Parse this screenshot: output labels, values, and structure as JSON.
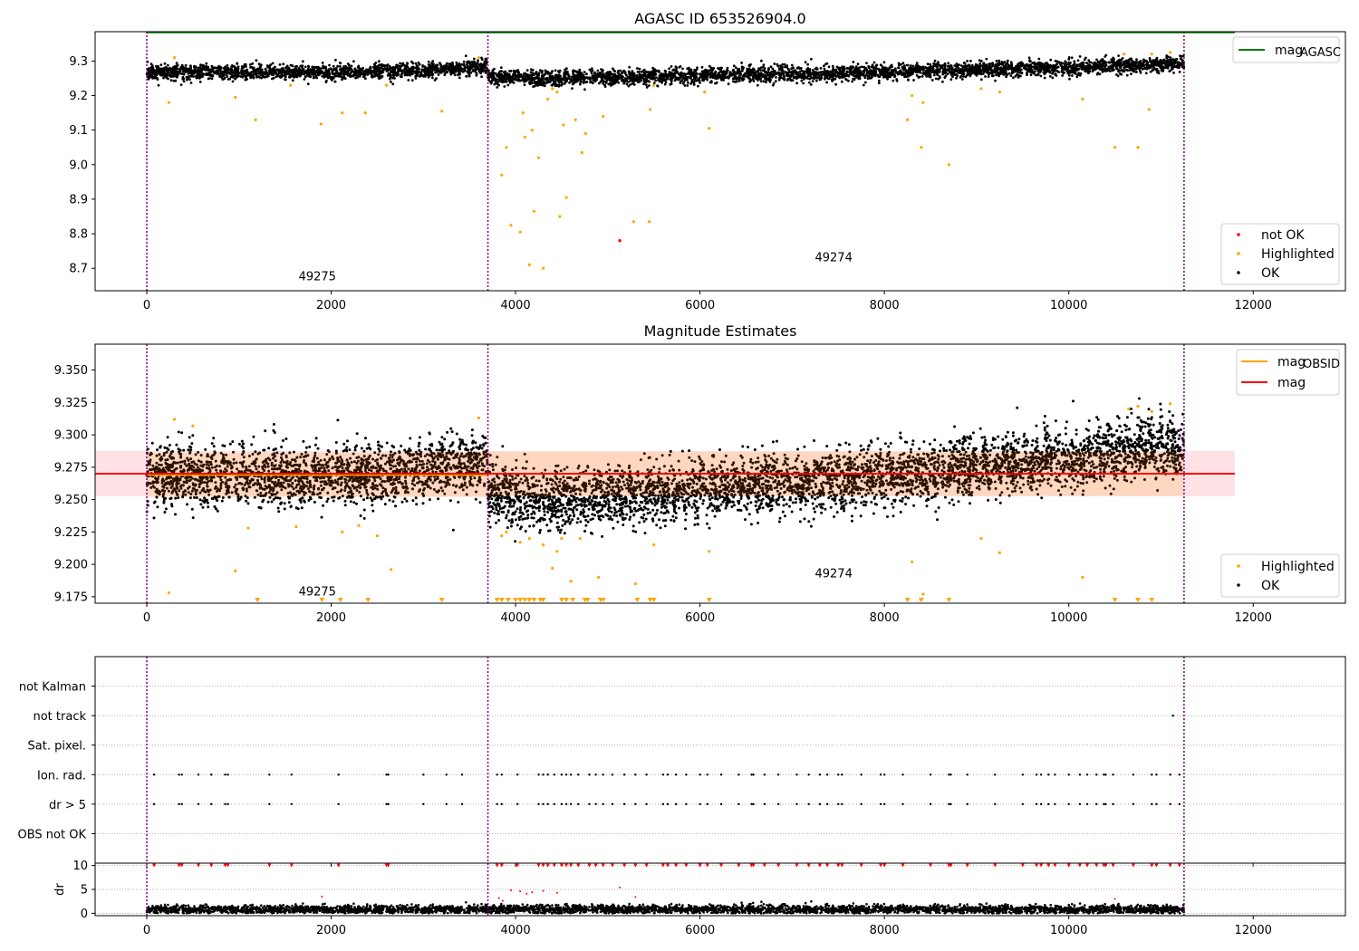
{
  "figure": {
    "title_top": "AGASC ID 653526904.0",
    "title_middle": "Magnitude Estimates"
  },
  "colors": {
    "ok": "#000000",
    "highlighted": "#ffa500",
    "not_ok": "#ff0000",
    "agasc": "#008000",
    "obsid": "#ffa500",
    "mag": "#ff0000",
    "obs_boundary": "#800080",
    "band_mag": "#ffb6c1",
    "band_obsid": "#ffcc99"
  },
  "legends": {
    "top_line": [
      {
        "key": "mag_agasc",
        "label": "mag",
        "sub": "AGASC",
        "color": "#008000"
      }
    ],
    "top_points": [
      {
        "label": "not OK",
        "color": "#ff0000"
      },
      {
        "label": "Highlighted",
        "color": "#ffa500"
      },
      {
        "label": "OK",
        "color": "#000000"
      }
    ],
    "middle_line": [
      {
        "key": "mag_obsid",
        "label": "mag",
        "sub": "OBSID",
        "color": "#ffa500"
      },
      {
        "key": "mag",
        "label": "mag",
        "sub": "",
        "color": "#ff0000"
      }
    ],
    "middle_points": [
      {
        "label": "Highlighted",
        "color": "#ffa500"
      },
      {
        "label": "OK",
        "color": "#000000"
      }
    ]
  },
  "chart_data": [
    {
      "type": "scatter",
      "title": "AGASC ID 653526904.0",
      "xlim": [
        -560,
        13000
      ],
      "ylim": [
        8.635,
        9.385
      ],
      "xticks": [
        0,
        2000,
        4000,
        6000,
        8000,
        10000,
        12000
      ],
      "yticks": [
        8.7,
        8.8,
        8.9,
        9.0,
        9.1,
        9.2,
        9.3
      ],
      "ytick_labels": [
        "8.7",
        "8.8",
        "8.9",
        "9.0",
        "9.1",
        "9.2",
        "9.3"
      ],
      "grid": false,
      "legend_line_position": "top-right",
      "legend_points_position": "bottom-right",
      "mag_agasc": 9.385,
      "obs_boundaries_x": [
        0,
        3700,
        11250
      ],
      "observations": [
        {
          "obsid": "49275",
          "x_range": [
            0,
            3700
          ],
          "label_x": 1850,
          "label_y": 8.665
        },
        {
          "obsid": "49274",
          "x_range": [
            3700,
            11250
          ],
          "label_x": 7450,
          "label_y": 8.72
        }
      ],
      "ok_trend": [
        {
          "x": 0,
          "y": 9.268
        },
        {
          "x": 2000,
          "y": 9.268
        },
        {
          "x": 3000,
          "y": 9.272
        },
        {
          "x": 3690,
          "y": 9.282
        },
        {
          "x": 3710,
          "y": 9.255
        },
        {
          "x": 4300,
          "y": 9.248
        },
        {
          "x": 6000,
          "y": 9.258
        },
        {
          "x": 8000,
          "y": 9.268
        },
        {
          "x": 10000,
          "y": 9.282
        },
        {
          "x": 11250,
          "y": 9.292
        }
      ],
      "highlighted_points": [
        [
          240,
          9.18
        ],
        [
          300,
          9.31
        ],
        [
          960,
          9.195
        ],
        [
          1180,
          9.13
        ],
        [
          1560,
          9.23
        ],
        [
          1890,
          9.118
        ],
        [
          2120,
          9.15
        ],
        [
          2370,
          9.15
        ],
        [
          2600,
          9.23
        ],
        [
          3200,
          9.155
        ],
        [
          3600,
          9.31
        ],
        [
          3850,
          8.97
        ],
        [
          3900,
          9.05
        ],
        [
          3950,
          8.825
        ],
        [
          4050,
          8.805
        ],
        [
          4080,
          9.15
        ],
        [
          4100,
          9.08
        ],
        [
          4150,
          8.71
        ],
        [
          4180,
          9.1
        ],
        [
          4200,
          8.865
        ],
        [
          4250,
          9.02
        ],
        [
          4300,
          8.7
        ],
        [
          4350,
          9.19
        ],
        [
          4400,
          9.22
        ],
        [
          4450,
          9.21
        ],
        [
          4480,
          8.85
        ],
        [
          4520,
          9.115
        ],
        [
          4550,
          8.905
        ],
        [
          4650,
          9.13
        ],
        [
          4720,
          9.035
        ],
        [
          4760,
          9.09
        ],
        [
          4950,
          9.14
        ],
        [
          5280,
          8.835
        ],
        [
          5450,
          8.835
        ],
        [
          5460,
          9.16
        ],
        [
          5500,
          9.23
        ],
        [
          6100,
          9.105
        ],
        [
          6050,
          9.21
        ],
        [
          8250,
          9.13
        ],
        [
          8300,
          9.2
        ],
        [
          8400,
          9.05
        ],
        [
          8420,
          9.18
        ],
        [
          8700,
          9.0
        ],
        [
          9050,
          9.22
        ],
        [
          9250,
          9.21
        ],
        [
          10150,
          9.19
        ],
        [
          10500,
          9.05
        ],
        [
          10750,
          9.05
        ],
        [
          10870,
          9.16
        ],
        [
          10600,
          9.32
        ],
        [
          10900,
          9.32
        ],
        [
          11100,
          9.325
        ]
      ],
      "not_ok_points": [
        [
          5130,
          8.78
        ]
      ]
    },
    {
      "type": "scatter",
      "title": "Magnitude Estimates",
      "xlim": [
        -560,
        13000
      ],
      "ylim": [
        9.17,
        9.37
      ],
      "xticks": [
        0,
        2000,
        4000,
        6000,
        8000,
        10000,
        12000
      ],
      "yticks": [
        9.175,
        9.2,
        9.225,
        9.25,
        9.275,
        9.3,
        9.325,
        9.35
      ],
      "ytick_labels": [
        "9.175",
        "9.200",
        "9.225",
        "9.250",
        "9.275",
        "9.300",
        "9.325",
        "9.350"
      ],
      "grid": false,
      "legend_line_position": "top-right",
      "legend_points_position": "bottom-right",
      "mag": 9.27,
      "mag_band": [
        9.2525,
        9.2875
      ],
      "mag_obsid": [
        {
          "obsid": "49275",
          "x_range": [
            0,
            3700
          ],
          "value": 9.269,
          "band": [
            9.252,
            9.286
          ]
        },
        {
          "obsid": "49274",
          "x_range": [
            3700,
            11250
          ],
          "value": 9.27,
          "band": [
            9.253,
            9.287
          ]
        }
      ],
      "obs_boundaries_x": [
        0,
        3700,
        11250
      ],
      "observations": [
        {
          "obsid": "49275",
          "label_x": 1850,
          "label_y": 9.176
        },
        {
          "obsid": "49274",
          "label_x": 7450,
          "label_y": 9.19
        }
      ],
      "highlighted_points": [
        [
          240,
          9.178
        ],
        [
          300,
          9.312
        ],
        [
          500,
          9.307
        ],
        [
          960,
          9.195
        ],
        [
          1100,
          9.228
        ],
        [
          1620,
          9.229
        ],
        [
          2120,
          9.225
        ],
        [
          2300,
          9.23
        ],
        [
          2500,
          9.222
        ],
        [
          2650,
          9.196
        ],
        [
          3600,
          9.313
        ],
        [
          3850,
          9.222
        ],
        [
          3900,
          9.225
        ],
        [
          4050,
          9.217
        ],
        [
          4150,
          9.22
        ],
        [
          4300,
          9.215
        ],
        [
          4400,
          9.197
        ],
        [
          4450,
          9.21
        ],
        [
          4500,
          9.22
        ],
        [
          4600,
          9.187
        ],
        [
          4700,
          9.22
        ],
        [
          4900,
          9.19
        ],
        [
          5300,
          9.185
        ],
        [
          5500,
          9.215
        ],
        [
          6100,
          9.21
        ],
        [
          8300,
          9.202
        ],
        [
          8420,
          9.177
        ],
        [
          9050,
          9.22
        ],
        [
          9250,
          9.209
        ],
        [
          10150,
          9.19
        ],
        [
          10650,
          9.32
        ],
        [
          10750,
          9.322
        ],
        [
          10900,
          9.318
        ],
        [
          11100,
          9.324
        ]
      ],
      "highlighted_clipped_x": [
        1200,
        1900,
        2100,
        2400,
        3200,
        3800,
        3850,
        3920,
        4000,
        4050,
        4100,
        4150,
        4200,
        4270,
        4300,
        4500,
        4550,
        4620,
        4750,
        4780,
        4920,
        4950,
        5320,
        5460,
        5500,
        6100,
        8250,
        8400,
        8700,
        10500,
        10750,
        10900
      ]
    },
    {
      "type": "scatter",
      "title": "",
      "xlim": [
        -560,
        13000
      ],
      "ylim": [
        0,
        7
      ],
      "categories": [
        "OBS not OK",
        "dr > 5",
        "Ion. rad.",
        "Sat. pixel.",
        "not track",
        "not Kalman"
      ],
      "xticks": [
        0,
        2000,
        4000,
        6000,
        8000,
        10000,
        12000
      ],
      "grid": true,
      "obs_boundaries_x": [
        0,
        3700,
        11250
      ],
      "flag_x": {
        "dr > 5": [
          80,
          350,
          380,
          560,
          700,
          850,
          880,
          1330,
          1570,
          2080,
          2600,
          2620,
          3000,
          3250,
          3420,
          3800,
          3850,
          4020,
          4250,
          4300,
          4350,
          4420,
          4500,
          4550,
          4600,
          4680,
          4800,
          4870,
          4950,
          5050,
          5180,
          5300,
          5420,
          5600,
          5650,
          5740,
          5850,
          6000,
          6080,
          6230,
          6420,
          6560,
          6580,
          6700,
          6850,
          7050,
          7180,
          7300,
          7380,
          7500,
          7540,
          7750,
          7960,
          8000,
          8200,
          8500,
          8700,
          8720,
          8900,
          9200,
          9500,
          9650,
          9700,
          9780,
          9850,
          10000,
          10120,
          10200,
          10300,
          10380,
          10400,
          10480,
          10700,
          10900,
          10950,
          11100,
          11200
        ],
        "Ion. rad.": [
          80,
          350,
          380,
          560,
          700,
          850,
          880,
          1330,
          1570,
          2080,
          2600,
          2620,
          3000,
          3250,
          3420,
          3800,
          3850,
          4020,
          4250,
          4300,
          4350,
          4420,
          4500,
          4550,
          4600,
          4680,
          4800,
          4870,
          4950,
          5050,
          5180,
          5300,
          5420,
          5600,
          5650,
          5740,
          5850,
          6000,
          6080,
          6230,
          6420,
          6560,
          6580,
          6700,
          6850,
          7050,
          7180,
          7300,
          7380,
          7500,
          7540,
          7750,
          7960,
          8000,
          8200,
          8500,
          8700,
          8720,
          8900,
          9200,
          9500,
          9650,
          9700,
          9780,
          9850,
          10000,
          10120,
          10200,
          10300,
          10380,
          10400,
          10480,
          10700,
          10900,
          10950,
          11100,
          11200
        ],
        "not track": [
          11130
        ]
      }
    },
    {
      "type": "scatter",
      "title": "",
      "ylabel": "dr",
      "xlim": [
        -560,
        13000
      ],
      "ylim": [
        -0.5,
        10.5
      ],
      "yticks": [
        0,
        5,
        10
      ],
      "ytick_labels": [
        "0",
        "5",
        "10"
      ],
      "xticks": [
        0,
        2000,
        4000,
        6000,
        8000,
        10000,
        12000
      ],
      "xtick_labels": [
        "0",
        "2000",
        "4000",
        "6000",
        "8000",
        "10000",
        "12000"
      ],
      "grid": true,
      "obs_boundaries_x": [
        0,
        3700,
        11250
      ],
      "dr_typical": 0.8,
      "not_ok_mid": [
        [
          1900,
          3.5
        ],
        [
          3820,
          3.2
        ],
        [
          3860,
          2.6
        ],
        [
          3950,
          4.8
        ],
        [
          4050,
          4.6
        ],
        [
          4120,
          4.1
        ],
        [
          4180,
          4.4
        ],
        [
          4300,
          4.7
        ],
        [
          4450,
          4.3
        ],
        [
          5130,
          5.4
        ],
        [
          5300,
          3.4
        ],
        [
          10500,
          3.0
        ]
      ],
      "not_ok_clipped_x": [
        80,
        350,
        380,
        560,
        700,
        850,
        880,
        1330,
        1570,
        2080,
        2600,
        2620,
        3800,
        3850,
        4020,
        4250,
        4300,
        4350,
        4420,
        4500,
        4550,
        4600,
        4680,
        4800,
        4870,
        4950,
        5050,
        5180,
        5300,
        5420,
        5600,
        5650,
        5740,
        5850,
        6000,
        6080,
        6230,
        6420,
        6560,
        6580,
        6700,
        6850,
        7050,
        7180,
        7300,
        7380,
        7500,
        7540,
        7750,
        7960,
        8000,
        8200,
        8500,
        8700,
        8720,
        8900,
        9200,
        9500,
        9650,
        9700,
        9780,
        9850,
        10000,
        10120,
        10200,
        10300,
        10380,
        10400,
        10480,
        10700,
        10900,
        10950,
        11100,
        11200
      ]
    }
  ]
}
